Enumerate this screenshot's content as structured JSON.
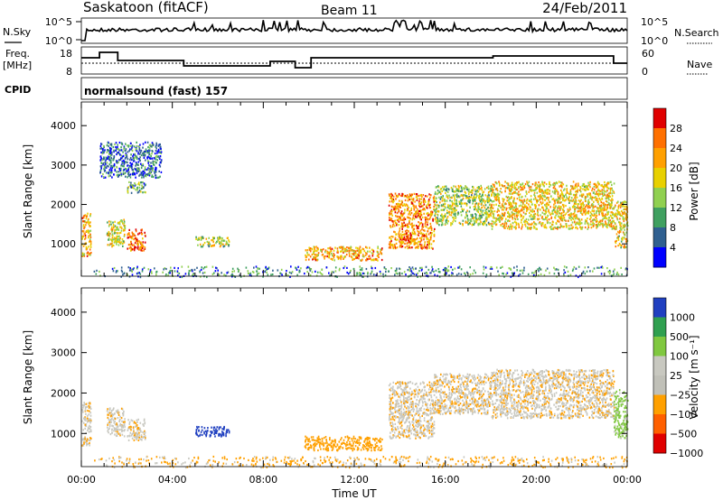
{
  "header": {
    "station": "Saskatoon (fitACF)",
    "beam": "Beam 11",
    "date": "24/Feb/2011"
  },
  "strips": {
    "nsky_label": "N.Sky",
    "nsky_ticks": [
      "10^5",
      "10^0"
    ],
    "nsearch_label": "N.Search",
    "nsearch_ticks": [
      "10^5",
      "10^0"
    ],
    "freq_label_1": "Freq.",
    "freq_label_2": "[MHz]",
    "freq_ticks": [
      "18",
      "8"
    ],
    "nave_label": "Nave",
    "nave_ticks": [
      "60",
      "0"
    ],
    "cpid_label": "CPID",
    "cpid_text": "normalsound (fast) 157"
  },
  "chart_data": [
    {
      "type": "heatmap",
      "panel": "power",
      "ylabel": "Slant Range [km]",
      "yticks": [
        1000,
        2000,
        3000,
        4000
      ],
      "ylim": [
        180,
        4600
      ],
      "xlim_hours": [
        0,
        24
      ],
      "colorbar_label": "Power [dB]",
      "colorbar_ticks": [
        "28",
        "24",
        "20",
        "16",
        "12",
        "8",
        "4"
      ],
      "colorbar_colors": [
        "#e00000",
        "#ff7000",
        "#ffa000",
        "#e8d000",
        "#90d050",
        "#40a060",
        "#306090",
        "#0000ff"
      ],
      "scatter_regions": [
        {
          "t": [
            0.0,
            0.4
          ],
          "r": [
            700,
            1800
          ],
          "power_db": 20
        },
        {
          "t": [
            1.1,
            1.9
          ],
          "r": [
            950,
            1650
          ],
          "power_db": 16
        },
        {
          "t": [
            2.0,
            2.8
          ],
          "r": [
            850,
            1400
          ],
          "power_db": 24
        },
        {
          "t": [
            2.0,
            2.8
          ],
          "r": [
            2300,
            2600
          ],
          "power_db": 10
        },
        {
          "t": [
            0.8,
            3.5
          ],
          "r": [
            2700,
            3600
          ],
          "power_db": 6
        },
        {
          "t": [
            5.0,
            6.5
          ],
          "r": [
            950,
            1200
          ],
          "power_db": 14
        },
        {
          "t": [
            9.8,
            13.2
          ],
          "r": [
            600,
            950
          ],
          "power_db": 20
        },
        {
          "t": [
            13.5,
            15.5
          ],
          "r": [
            900,
            2300
          ],
          "power_db": 22
        },
        {
          "t": [
            15.5,
            18.0
          ],
          "r": [
            1500,
            2500
          ],
          "power_db": 14
        },
        {
          "t": [
            18.0,
            23.4
          ],
          "r": [
            1400,
            2600
          ],
          "power_db": 18
        },
        {
          "t": [
            23.4,
            24.0
          ],
          "r": [
            900,
            2100
          ],
          "power_db": 18
        },
        {
          "t": [
            0.5,
            24.0
          ],
          "r": [
            180,
            450
          ],
          "power_db": 8
        }
      ]
    },
    {
      "type": "heatmap",
      "panel": "velocity",
      "ylabel": "Slant Range [km]",
      "yticks": [
        1000,
        2000,
        3000,
        4000
      ],
      "ylim": [
        180,
        4600
      ],
      "xlabel": "Time UT",
      "xticks": [
        "00:00",
        "04:00",
        "08:00",
        "12:00",
        "16:00",
        "20:00",
        "00:00"
      ],
      "xlim_hours": [
        0,
        24
      ],
      "colorbar_label": "Velocity [m s⁻¹]",
      "colorbar_ticks": [
        "1000",
        "500",
        "100",
        "25",
        "−25",
        "−100",
        "−500",
        "−1000"
      ],
      "colorbar_colors": [
        "#2040c0",
        "#30a050",
        "#80c840",
        "#c8c8c0",
        "#c0c0b8",
        "#ffa000",
        "#ff6000",
        "#e00000"
      ],
      "scatter_regions": [
        {
          "t": [
            0.0,
            0.4
          ],
          "r": [
            700,
            1800
          ],
          "velocity": 0
        },
        {
          "t": [
            1.1,
            1.9
          ],
          "r": [
            950,
            1650
          ],
          "velocity": 0
        },
        {
          "t": [
            2.0,
            2.8
          ],
          "r": [
            850,
            1400
          ],
          "velocity": 0
        },
        {
          "t": [
            5.0,
            6.5
          ],
          "r": [
            950,
            1200
          ],
          "velocity": 800
        },
        {
          "t": [
            9.8,
            13.2
          ],
          "r": [
            600,
            950
          ],
          "velocity": -300
        },
        {
          "t": [
            13.5,
            15.5
          ],
          "r": [
            900,
            2300
          ],
          "velocity": 0
        },
        {
          "t": [
            15.5,
            18.0
          ],
          "r": [
            1500,
            2500
          ],
          "velocity": 0
        },
        {
          "t": [
            18.0,
            23.4
          ],
          "r": [
            1400,
            2600
          ],
          "velocity": 0
        },
        {
          "t": [
            23.4,
            24.0
          ],
          "r": [
            900,
            2100
          ],
          "velocity": 100
        },
        {
          "t": [
            0.5,
            24.0
          ],
          "r": [
            180,
            450
          ],
          "velocity": -50
        }
      ]
    }
  ]
}
